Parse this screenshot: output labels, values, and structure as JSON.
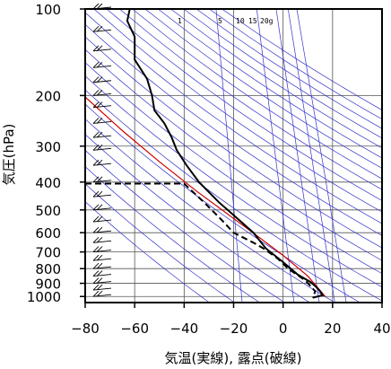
{
  "chart_data": {
    "type": "line",
    "title": "",
    "xlabel": "気温(実線), 露点(破線)",
    "ylabel": "気圧(hPa)",
    "xlim": [
      -80,
      40
    ],
    "ylim": [
      1050,
      100
    ],
    "y_scale": "log",
    "grid": true,
    "x_ticks": [
      "−80",
      "−60",
      "−40",
      "−20",
      "0",
      "20",
      "40"
    ],
    "x_tick_values": [
      -80,
      -60,
      -40,
      -20,
      0,
      20,
      40
    ],
    "y_ticks": [
      "100",
      "200",
      "300",
      "400",
      "500",
      "600",
      "700",
      "800",
      "900",
      "1000"
    ],
    "y_tick_values": [
      100,
      200,
      300,
      400,
      500,
      600,
      700,
      800,
      900,
      1000
    ],
    "mixing_ratio_labels": [
      "1",
      "5",
      "10",
      "15",
      "20g"
    ],
    "mixing_ratio_values": [
      1,
      5,
      10,
      15,
      20
    ],
    "series": [
      {
        "style": "solid",
        "color": "#000000",
        "points": [
          [
            -62,
            100
          ],
          [
            -63,
            110
          ],
          [
            -60,
            125
          ],
          [
            -60,
            150
          ],
          [
            -55,
            175
          ],
          [
            -53,
            200
          ],
          [
            -52,
            225
          ],
          [
            -48,
            250
          ],
          [
            -45,
            280
          ],
          [
            -43,
            310
          ],
          [
            -39,
            350
          ],
          [
            -34,
            400
          ],
          [
            -26,
            470
          ],
          [
            -18,
            540
          ],
          [
            -12,
            600
          ],
          [
            -7,
            680
          ],
          [
            0,
            760
          ],
          [
            6,
            840
          ],
          [
            11,
            890
          ],
          [
            13,
            920
          ],
          [
            15,
            960
          ],
          [
            16,
            990
          ],
          [
            12,
            1010
          ]
        ]
      },
      {
        "style": "dashed",
        "color": "#000000",
        "points": [
          [
            -80,
            405
          ],
          [
            -40,
            405
          ],
          [
            -32,
            470
          ],
          [
            -25,
            540
          ],
          [
            -20,
            600
          ],
          [
            -12,
            650
          ],
          [
            -8,
            680
          ],
          [
            -2,
            740
          ],
          [
            2,
            800
          ],
          [
            9,
            880
          ],
          [
            13,
            960
          ],
          [
            12,
            1010
          ]
        ]
      }
    ],
    "reference_line_colors": {
      "dry_adiabat": "#3333cc",
      "mixing_ratio": "#3333cc",
      "moist_adiabat": "#cc0000"
    },
    "wind_barb_color": "#000000"
  }
}
